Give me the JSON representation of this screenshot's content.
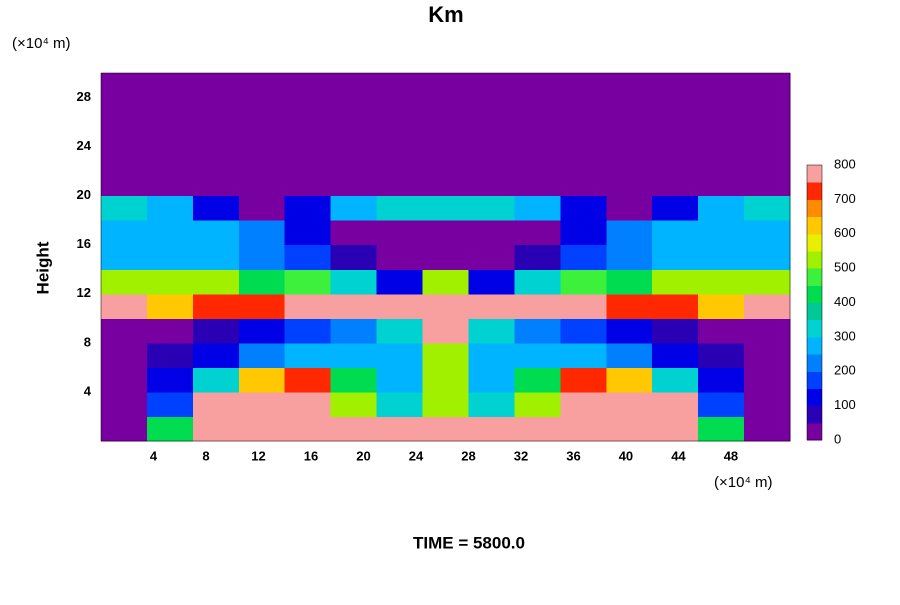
{
  "chart_data": {
    "type": "contour",
    "title": "Km",
    "ylabel": "Height",
    "y_unit": "(×10⁴ m)",
    "x_unit": "(×10⁴ m)",
    "time_label": "TIME = 5800.0",
    "xlim": [
      0,
      52.5
    ],
    "ylim": [
      0,
      30
    ],
    "xticks": [
      4,
      8,
      12,
      16,
      20,
      24,
      28,
      32,
      36,
      40,
      44,
      48
    ],
    "yticks": [
      4,
      8,
      12,
      16,
      20,
      24,
      28
    ],
    "z": [
      [
        0,
        400,
        800,
        800,
        800,
        800,
        800,
        800,
        800,
        800,
        800,
        800,
        800,
        400,
        0
      ],
      [
        0,
        150,
        800,
        800,
        800,
        500,
        300,
        500,
        300,
        500,
        800,
        800,
        800,
        150,
        0
      ],
      [
        0,
        100,
        300,
        600,
        700,
        400,
        250,
        500,
        250,
        400,
        700,
        600,
        300,
        100,
        0
      ],
      [
        0,
        50,
        100,
        200,
        250,
        250,
        250,
        500,
        250,
        250,
        250,
        200,
        100,
        50,
        0
      ],
      [
        0,
        0,
        50,
        100,
        150,
        200,
        300,
        800,
        300,
        200,
        150,
        100,
        50,
        0,
        0
      ],
      [
        800,
        600,
        700,
        700,
        800,
        800,
        800,
        800,
        800,
        800,
        800,
        700,
        700,
        600,
        800
      ],
      [
        500,
        500,
        500,
        400,
        450,
        300,
        100,
        500,
        100,
        300,
        450,
        400,
        500,
        500,
        500
      ],
      [
        250,
        250,
        250,
        200,
        150,
        50,
        0,
        0,
        0,
        50,
        150,
        200,
        250,
        250,
        250
      ],
      [
        250,
        250,
        250,
        200,
        100,
        0,
        0,
        0,
        0,
        0,
        100,
        200,
        250,
        250,
        250
      ],
      [
        300,
        250,
        100,
        0,
        100,
        250,
        300,
        300,
        300,
        250,
        100,
        0,
        100,
        250,
        300
      ],
      [
        0,
        0,
        0,
        0,
        0,
        0,
        0,
        0,
        0,
        0,
        0,
        0,
        0,
        0,
        0
      ],
      [
        0,
        0,
        0,
        0,
        0,
        0,
        0,
        0,
        0,
        0,
        0,
        0,
        0,
        0,
        0
      ],
      [
        0,
        0,
        0,
        0,
        0,
        0,
        0,
        0,
        0,
        0,
        0,
        0,
        0,
        0,
        0
      ],
      [
        0,
        0,
        0,
        0,
        0,
        0,
        0,
        0,
        0,
        0,
        0,
        0,
        0,
        0,
        0
      ],
      [
        0,
        0,
        0,
        0,
        0,
        0,
        0,
        0,
        0,
        0,
        0,
        0,
        0,
        0,
        0
      ]
    ],
    "colorbar": {
      "levels": [
        0,
        50,
        100,
        150,
        200,
        250,
        300,
        350,
        400,
        450,
        500,
        550,
        600,
        650,
        700,
        750,
        800
      ],
      "colors": [
        "#7800a0",
        "#2a00b4",
        "#0000e6",
        "#0040ff",
        "#0080ff",
        "#00b4ff",
        "#00d2d2",
        "#00c896",
        "#00dc50",
        "#3cf03c",
        "#a0f000",
        "#e6f000",
        "#ffc800",
        "#ff8c00",
        "#ff2800",
        "#e60000"
      ],
      "over_color": "#f8a0a0",
      "ticks": [
        0,
        100,
        200,
        300,
        400,
        500,
        600,
        700,
        800
      ]
    }
  }
}
